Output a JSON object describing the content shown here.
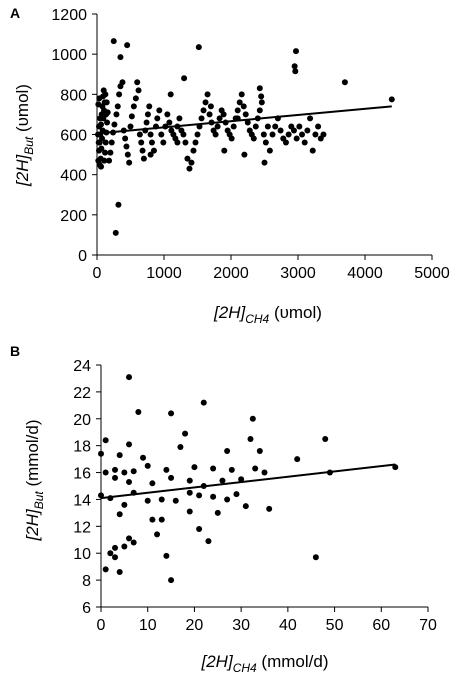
{
  "chart_data": [
    {
      "panel": "A",
      "type": "scatter",
      "title": "",
      "xlabel": {
        "main": "[2H]",
        "sub": "CH4",
        "unit": " (υmol)"
      },
      "ylabel": {
        "main": "[2H]",
        "sub": "But",
        "unit": " (υmol)"
      },
      "xlim": [
        0,
        5000
      ],
      "ylim": [
        0,
        1200
      ],
      "xticks": [
        0,
        1000,
        2000,
        3000,
        4000,
        5000
      ],
      "yticks": [
        0,
        200,
        400,
        600,
        800,
        1000,
        1200
      ],
      "grid": false,
      "trendline": {
        "x": [
          0,
          4400
        ],
        "y": [
          605,
          740
        ]
      },
      "points": [
        [
          250,
          1065
        ],
        [
          450,
          1045
        ],
        [
          350,
          985
        ],
        [
          1520,
          1035
        ],
        [
          2970,
          1015
        ],
        [
          2950,
          940
        ],
        [
          2960,
          915
        ],
        [
          3700,
          860
        ],
        [
          1300,
          880
        ],
        [
          4400,
          775
        ],
        [
          280,
          110
        ],
        [
          320,
          250
        ],
        [
          20,
          470
        ],
        [
          30,
          520
        ],
        [
          40,
          560
        ],
        [
          50,
          600
        ],
        [
          60,
          650
        ],
        [
          70,
          700
        ],
        [
          80,
          740
        ],
        [
          90,
          790
        ],
        [
          100,
          820
        ],
        [
          40,
          450
        ],
        [
          55,
          480
        ],
        [
          65,
          530
        ],
        [
          75,
          580
        ],
        [
          85,
          620
        ],
        [
          95,
          680
        ],
        [
          105,
          720
        ],
        [
          115,
          760
        ],
        [
          125,
          800
        ],
        [
          30,
          640
        ],
        [
          60,
          440
        ],
        [
          110,
          470
        ],
        [
          120,
          510
        ],
        [
          130,
          560
        ],
        [
          140,
          610
        ],
        [
          150,
          660
        ],
        [
          160,
          710
        ],
        [
          20,
          750
        ],
        [
          35,
          780
        ],
        [
          45,
          680
        ],
        [
          15,
          600
        ],
        [
          25,
          560
        ],
        [
          135,
          700
        ],
        [
          145,
          760
        ],
        [
          180,
          470
        ],
        [
          200,
          510
        ],
        [
          220,
          560
        ],
        [
          240,
          610
        ],
        [
          260,
          650
        ],
        [
          290,
          700
        ],
        [
          310,
          740
        ],
        [
          330,
          800
        ],
        [
          350,
          840
        ],
        [
          380,
          860
        ],
        [
          400,
          620
        ],
        [
          420,
          580
        ],
        [
          440,
          540
        ],
        [
          460,
          500
        ],
        [
          480,
          460
        ],
        [
          500,
          640
        ],
        [
          520,
          690
        ],
        [
          550,
          740
        ],
        [
          580,
          780
        ],
        [
          600,
          860
        ],
        [
          620,
          820
        ],
        [
          640,
          600
        ],
        [
          660,
          560
        ],
        [
          680,
          520
        ],
        [
          700,
          480
        ],
        [
          720,
          620
        ],
        [
          740,
          660
        ],
        [
          760,
          700
        ],
        [
          780,
          740
        ],
        [
          800,
          600
        ],
        [
          820,
          560
        ],
        [
          850,
          520
        ],
        [
          880,
          640
        ],
        [
          900,
          680
        ],
        [
          930,
          720
        ],
        [
          960,
          600
        ],
        [
          990,
          560
        ],
        [
          1020,
          640
        ],
        [
          1050,
          700
        ],
        [
          1080,
          660
        ],
        [
          1110,
          620
        ],
        [
          1140,
          600
        ],
        [
          1170,
          580
        ],
        [
          1200,
          640
        ],
        [
          1230,
          680
        ],
        [
          1260,
          620
        ],
        [
          1290,
          600
        ],
        [
          1320,
          560
        ],
        [
          1350,
          480
        ],
        [
          1380,
          430
        ],
        [
          1410,
          460
        ],
        [
          1440,
          520
        ],
        [
          1470,
          560
        ],
        [
          1500,
          600
        ],
        [
          1530,
          640
        ],
        [
          1560,
          680
        ],
        [
          1590,
          720
        ],
        [
          1620,
          760
        ],
        [
          1650,
          800
        ],
        [
          1680,
          700
        ],
        [
          1710,
          660
        ],
        [
          1740,
          620
        ],
        [
          1770,
          600
        ],
        [
          1800,
          640
        ],
        [
          1830,
          680
        ],
        [
          1860,
          720
        ],
        [
          1890,
          700
        ],
        [
          1920,
          660
        ],
        [
          1950,
          620
        ],
        [
          1980,
          600
        ],
        [
          2010,
          580
        ],
        [
          2040,
          640
        ],
        [
          2070,
          680
        ],
        [
          2100,
          720
        ],
        [
          2130,
          760
        ],
        [
          2160,
          800
        ],
        [
          2190,
          740
        ],
        [
          2220,
          700
        ],
        [
          2250,
          660
        ],
        [
          2280,
          620
        ],
        [
          2310,
          600
        ],
        [
          2340,
          580
        ],
        [
          2370,
          640
        ],
        [
          2400,
          680
        ],
        [
          2430,
          720
        ],
        [
          2460,
          760
        ],
        [
          2490,
          600
        ],
        [
          2520,
          560
        ],
        [
          2550,
          640
        ],
        [
          2580,
          520
        ],
        [
          2620,
          600
        ],
        [
          2660,
          640
        ],
        [
          2700,
          680
        ],
        [
          2740,
          620
        ],
        [
          2780,
          580
        ],
        [
          2820,
          560
        ],
        [
          2860,
          600
        ],
        [
          2900,
          640
        ],
        [
          2940,
          620
        ],
        [
          2980,
          580
        ],
        [
          3020,
          640
        ],
        [
          3060,
          600
        ],
        [
          3100,
          560
        ],
        [
          3140,
          620
        ],
        [
          3180,
          680
        ],
        [
          3220,
          520
        ],
        [
          3260,
          600
        ],
        [
          3300,
          640
        ],
        [
          3340,
          580
        ],
        [
          3380,
          600
        ],
        [
          1100,
          800
        ],
        [
          1700,
          740
        ],
        [
          2100,
          680
        ],
        [
          2430,
          830
        ],
        [
          2450,
          790
        ],
        [
          1200,
          560
        ],
        [
          1900,
          520
        ],
        [
          2200,
          500
        ],
        [
          2500,
          460
        ],
        [
          800,
          500
        ]
      ]
    },
    {
      "panel": "B",
      "type": "scatter",
      "title": "",
      "xlabel": {
        "main": "[2H]",
        "sub": "CH4",
        "unit": " (mmol/d)"
      },
      "ylabel": {
        "main": "[2H]",
        "sub": "But",
        "unit": " (mmol/d)"
      },
      "xlim": [
        0,
        70
      ],
      "ylim": [
        6,
        24
      ],
      "xticks": [
        0,
        10,
        20,
        30,
        40,
        50,
        60,
        70
      ],
      "yticks": [
        6,
        8,
        10,
        12,
        14,
        16,
        18,
        20,
        22,
        24
      ],
      "grid": false,
      "trendline": {
        "x": [
          0,
          63
        ],
        "y": [
          14.1,
          16.6
        ]
      },
      "points": [
        [
          6,
          23.1
        ],
        [
          22,
          21.2
        ],
        [
          8,
          20.5
        ],
        [
          15,
          20.4
        ],
        [
          32.5,
          20.0
        ],
        [
          48,
          18.5
        ],
        [
          1,
          18.4
        ],
        [
          6,
          18.1
        ],
        [
          18,
          18.9
        ],
        [
          32,
          18.5
        ],
        [
          0,
          17.4
        ],
        [
          4,
          17.3
        ],
        [
          9,
          17.1
        ],
        [
          17,
          17.9
        ],
        [
          27,
          17.6
        ],
        [
          34,
          17.6
        ],
        [
          42,
          17.0
        ],
        [
          1,
          16.0
        ],
        [
          3,
          16.2
        ],
        [
          5,
          16.0
        ],
        [
          7,
          16.1
        ],
        [
          10,
          16.5
        ],
        [
          14,
          16.2
        ],
        [
          20,
          16.4
        ],
        [
          24,
          16.3
        ],
        [
          28,
          16.2
        ],
        [
          33,
          16.3
        ],
        [
          49,
          16.0
        ],
        [
          63,
          16.4
        ],
        [
          3,
          15.6
        ],
        [
          6,
          15.3
        ],
        [
          11,
          15.2
        ],
        [
          15,
          15.6
        ],
        [
          19,
          15.4
        ],
        [
          22,
          15.0
        ],
        [
          26,
          15.4
        ],
        [
          30,
          15.5
        ],
        [
          35,
          16.0
        ],
        [
          0,
          14.3
        ],
        [
          2,
          14.1
        ],
        [
          5,
          13.6
        ],
        [
          7,
          14.5
        ],
        [
          10,
          13.9
        ],
        [
          13,
          14.0
        ],
        [
          16,
          13.9
        ],
        [
          19,
          14.5
        ],
        [
          21,
          14.3
        ],
        [
          24,
          14.2
        ],
        [
          27,
          14.0
        ],
        [
          29,
          14.4
        ],
        [
          31,
          13.5
        ],
        [
          36,
          13.3
        ],
        [
          4,
          12.9
        ],
        [
          11,
          12.5
        ],
        [
          13,
          12.5
        ],
        [
          19,
          13.1
        ],
        [
          25,
          13.0
        ],
        [
          12,
          11.4
        ],
        [
          21,
          11.8
        ],
        [
          23,
          10.9
        ],
        [
          6,
          11.1
        ],
        [
          3,
          10.4
        ],
        [
          2,
          10.0
        ],
        [
          3,
          9.7
        ],
        [
          5,
          10.5
        ],
        [
          7,
          10.8
        ],
        [
          14,
          9.8
        ],
        [
          1,
          8.8
        ],
        [
          4,
          8.6
        ],
        [
          15,
          8.0
        ],
        [
          46,
          9.7
        ]
      ]
    }
  ]
}
